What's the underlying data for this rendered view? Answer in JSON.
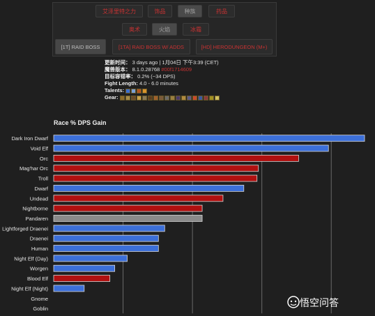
{
  "tabs_row1": [
    {
      "label": "艾泽里特之力",
      "active": false
    },
    {
      "label": "饰品",
      "active": false
    },
    {
      "label": "种族",
      "active": true
    },
    {
      "label": "药品",
      "active": false
    }
  ],
  "tabs_row2": [
    {
      "label": "奥术",
      "active": false
    },
    {
      "label": "火焰",
      "active": true
    },
    {
      "label": "冰霜",
      "active": false
    }
  ],
  "tabs_row3": [
    {
      "label": "[1T] RAID BOSS",
      "active": true
    },
    {
      "label": "[1TA] RAID BOSS W/ ADDS",
      "active": false
    },
    {
      "label": "[HD] HERODUNGEON (M+)",
      "active": false
    }
  ],
  "info": {
    "updated_key": "更新时间：",
    "updated_val": "3 days ago | 1月04日 下午3:39 (CET)",
    "version_key": "魔兽版本：",
    "version_val": "8.1.0.28768",
    "version_hash": "#00f1714609",
    "error_key": "目标容错率：",
    "error_val": "0.2% (~34 DPS)",
    "fight_key": "Fight Length:",
    "fight_val": "4.0 - 6.0 minutes",
    "talents_key": "Talents:",
    "gear_key": "Gear:"
  },
  "talent_icons": [
    "#3b6fd1",
    "#7aa0d6",
    "#b3541e",
    "#d9942b"
  ],
  "gear_icons": [
    "#8c6a2a",
    "#a58b48",
    "#6b4a28",
    "#c9a24a",
    "#8a7a58",
    "#5b3c1e",
    "#a0602c",
    "#7a5a3a",
    "#6a6a6a",
    "#9a8040",
    "#4a3a6a",
    "#b08a40",
    "#5a5a8a",
    "#c84a2a",
    "#3a5aa0",
    "#8a3a3a",
    "#a09020",
    "#d0c060"
  ],
  "chart_title": "Race % DPS Gain",
  "chart_data": {
    "type": "bar",
    "orientation": "horizontal",
    "title": "Race % DPS Gain",
    "categories": [
      "Dark Iron Dwarf",
      "Void Elf",
      "Orc",
      "Mag'har Orc",
      "Troll",
      "Dwarf",
      "Undead",
      "Nightborne",
      "Pandaren",
      "Lightforged Draenei",
      "Draenei",
      "Human",
      "Night Elf (Day)",
      "Worgen",
      "Blood Elf",
      "Night Elf (Night)",
      "Gnome",
      "Goblin"
    ],
    "values": [
      4.48,
      3.96,
      3.53,
      2.95,
      2.93,
      2.74,
      2.44,
      2.14,
      2.14,
      1.6,
      1.51,
      1.51,
      1.06,
      0.88,
      0.81,
      0.44,
      0,
      0
    ],
    "faction": [
      "alliance",
      "alliance",
      "horde",
      "horde",
      "horde",
      "alliance",
      "horde",
      "horde",
      "neutral",
      "alliance",
      "alliance",
      "alliance",
      "alliance",
      "alliance",
      "horde",
      "alliance",
      "alliance",
      "horde"
    ],
    "colors": {
      "alliance": "#3c6fd8",
      "horde": "#b01010",
      "neutral": "#8a8a8a"
    },
    "xlim": [
      0,
      4.5
    ],
    "grid_step": 1,
    "grid": true
  },
  "watermark": "悟空问答"
}
